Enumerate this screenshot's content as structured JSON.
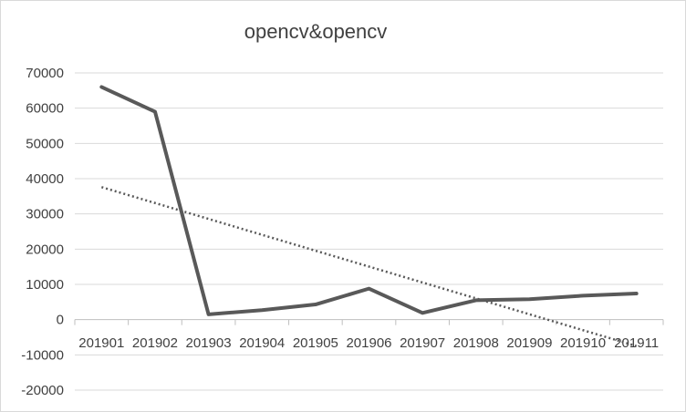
{
  "chart_data": {
    "type": "line",
    "title": "opencv&opencv",
    "xlabel": "",
    "ylabel": "",
    "categories": [
      "201901",
      "201902",
      "201903",
      "201904",
      "201905",
      "201906",
      "201907",
      "201908",
      "201909",
      "201910",
      "201911"
    ],
    "series": [
      {
        "values": [
          66000,
          59000,
          1500,
          2700,
          4300,
          8800,
          1900,
          5500,
          5800,
          6800,
          7400
        ],
        "color": "#595959",
        "style": "solid"
      },
      {
        "values": [
          37600,
          33000,
          28500,
          24000,
          19500,
          15000,
          10500,
          6000,
          1500,
          -3000,
          -7500
        ],
        "color": "#595959",
        "style": "dotted",
        "role": "linear trendline"
      }
    ],
    "ylim": [
      -20000,
      70000
    ],
    "yticks": [
      70000,
      60000,
      50000,
      40000,
      30000,
      20000,
      10000,
      0,
      -10000,
      -20000
    ],
    "grid": true,
    "legend": "none"
  }
}
